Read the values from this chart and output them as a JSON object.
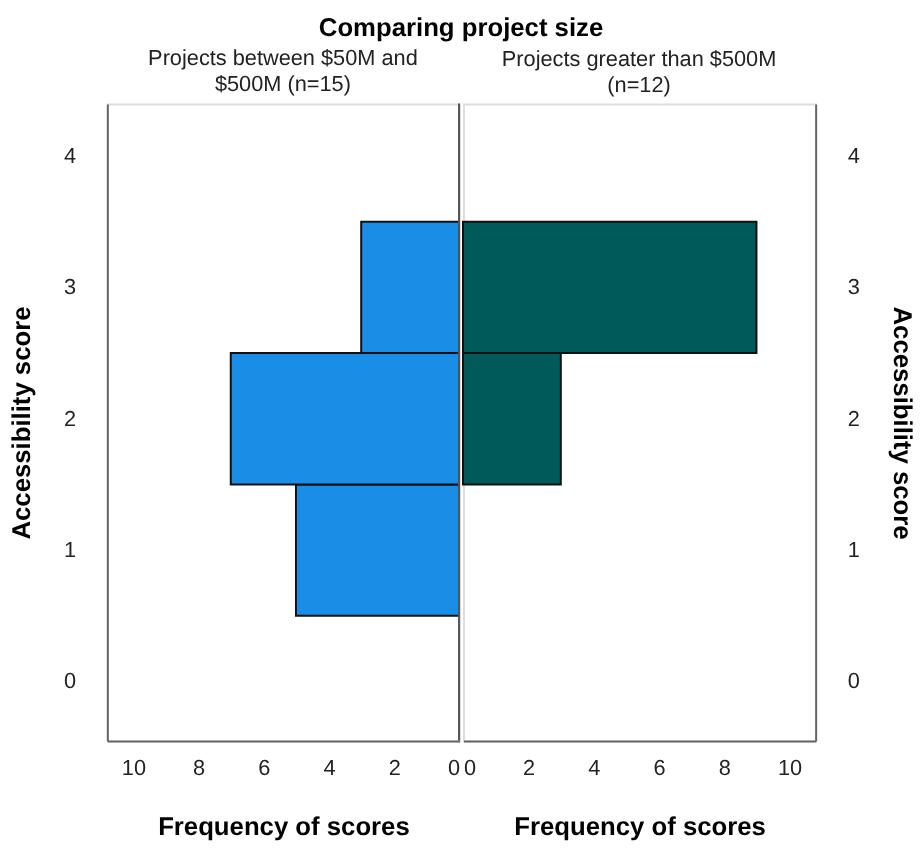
{
  "chart_data": [
    {
      "type": "histogram",
      "orientation": "horizontal",
      "title": "Comparing project size",
      "subtitle": "Projects between $50M and $500M (n=15)",
      "xlabel": "Frequency of scores",
      "ylabel": "Accessibility score",
      "bins": [
        0.5,
        1.5,
        2.5,
        3.5
      ],
      "values": [
        5,
        7,
        3
      ],
      "color": "#1a8ee6",
      "xlim": [
        10.8,
        0
      ],
      "xticks": [
        10,
        8,
        6,
        4,
        2,
        0
      ],
      "ylim": [
        -0.45,
        4.4
      ],
      "yticks": [
        0,
        1,
        2,
        3,
        4
      ],
      "grid": false
    },
    {
      "type": "histogram",
      "orientation": "horizontal",
      "subtitle": "Projects greater than $500M (n=12)",
      "xlabel": "Frequency of scores",
      "ylabel": "Accessibility score",
      "bins": [
        1.5,
        2.5,
        3.5
      ],
      "values": [
        3,
        9
      ],
      "color": "#005a5a",
      "xlim": [
        0,
        10.8
      ],
      "xticks": [
        0,
        2,
        4,
        6,
        8,
        10
      ],
      "ylim": [
        -0.45,
        4.4
      ],
      "yticks": [
        0,
        1,
        2,
        3,
        4
      ],
      "grid": false
    }
  ]
}
